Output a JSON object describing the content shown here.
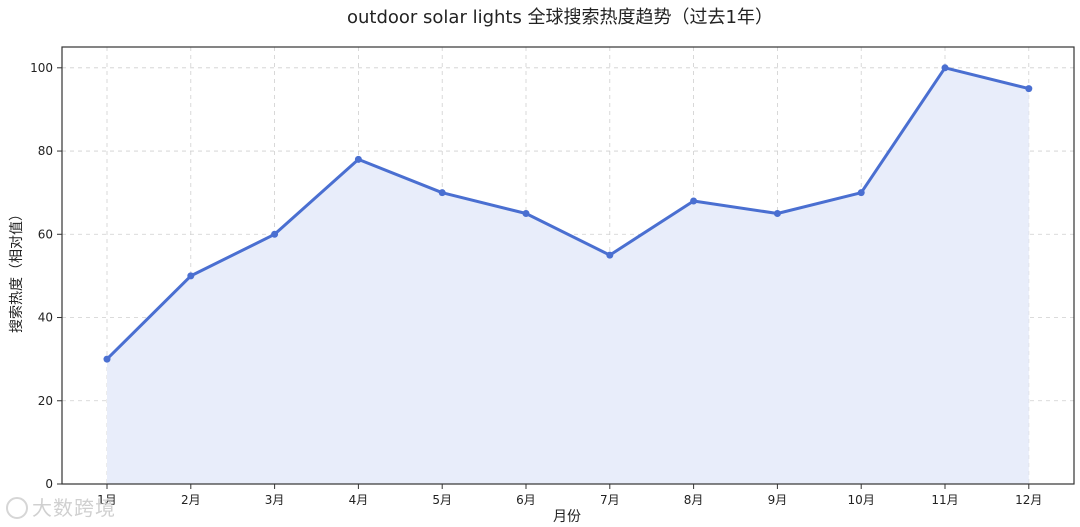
{
  "chart_data": {
    "type": "area",
    "title": "outdoor solar lights 全球搜索热度趋势（过去1年）",
    "xlabel": "月份",
    "ylabel": "搜索热度（相对值）",
    "categories": [
      "1月",
      "2月",
      "3月",
      "4月",
      "5月",
      "6月",
      "7月",
      "8月",
      "9月",
      "10月",
      "11月",
      "12月"
    ],
    "values": [
      30,
      50,
      60,
      78,
      70,
      65,
      55,
      68,
      65,
      70,
      100,
      95
    ],
    "ylim": [
      0,
      105
    ],
    "yticks": [
      0,
      20,
      40,
      60,
      80,
      100
    ],
    "grid": true,
    "line_color": "#4a6fd1",
    "fill_color": "#e8edfa"
  },
  "watermark": {
    "text": "大数跨境",
    "icon": "brand-logo-icon"
  }
}
